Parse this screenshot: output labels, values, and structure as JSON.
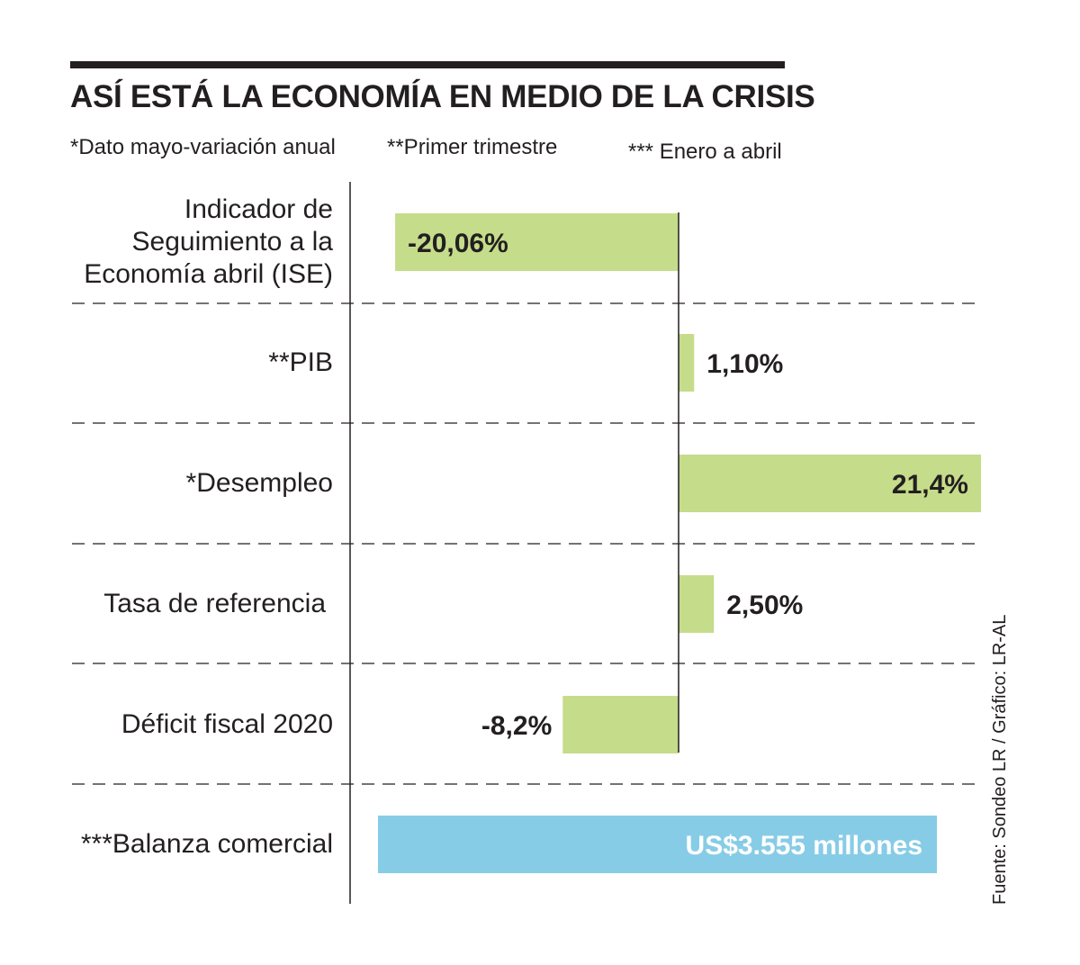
{
  "title": "ASÍ ESTÁ LA ECONOMÍA EN MEDIO DE LA CRISIS",
  "notes": [
    "*Dato mayo-variación anual",
    "**Primer trimestre",
    "*** Enero a abril"
  ],
  "source": "Fuente: Sondeo LR / Gráfico: LR-AL",
  "colors": {
    "bar_green": "#c5dc8a",
    "bar_blue": "#87cce6",
    "text": "#231f20"
  },
  "chart_data": {
    "type": "bar",
    "orientation": "horizontal",
    "categories": [
      "Indicador de\nSeguimiento a la\nEconomía abril (ISE)",
      "**PIB",
      "*Desempleo",
      "Tasa de referencia",
      "Déficit fiscal 2020"
    ],
    "values": [
      -20.06,
      1.1,
      21.4,
      2.5,
      -8.2
    ],
    "value_labels": [
      "-20,06%",
      "1,10%",
      "21,4%",
      "2,50%",
      "-8,2%"
    ],
    "unit": "%",
    "extra_row": {
      "category": "***Balanza comercial",
      "value_label": "US$3.555 millones"
    }
  }
}
